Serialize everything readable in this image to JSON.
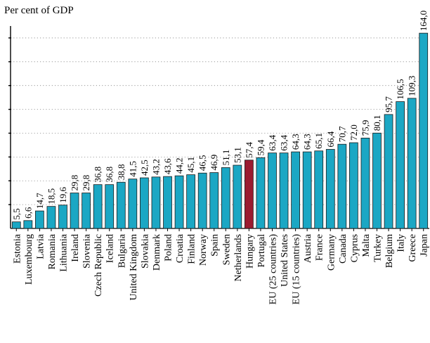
{
  "chart_data": {
    "type": "bar",
    "ylabel": "Per cent of GDP",
    "ylim": [
      0,
      170
    ],
    "y_tick_step": 20,
    "grid": true,
    "highlight_color": "#9b1b30",
    "bar_color": "#1ba7c4",
    "highlight_category": "Hungary",
    "categories": [
      "Estonia",
      "Luxembourg",
      "Latvia",
      "Romania",
      "Lithuania",
      "Ireland",
      "Slovenia",
      "Czech Republic",
      "Iceland",
      "Bulgaria",
      "United Kingdom",
      "Slovakia",
      "Denmark",
      "Poland",
      "Croatia",
      "Finland",
      "Norway",
      "Spain",
      "Sweden",
      "Netherlands",
      "Hungary",
      "Portugal",
      "EU (25 countries)",
      "United States",
      "EU (15 countries)",
      "Austria",
      "France",
      "Germany",
      "Canada",
      "Cyprus",
      "Malta",
      "Turkey",
      "Belgium",
      "Italy",
      "Greece",
      "Japan"
    ],
    "value_labels": [
      "5,5",
      "6,6",
      "14,7",
      "18,5",
      "19,6",
      "29,8",
      "29,8",
      "36,8",
      "36,8",
      "38,8",
      "41,5",
      "42,5",
      "43,2",
      "43,6",
      "44,2",
      "45,1",
      "46,5",
      "46,9",
      "51,1",
      "53,1",
      "57,4",
      "59,4",
      "63,4",
      "63,4",
      "64,3",
      "64,3",
      "65,1",
      "66,4",
      "70,7",
      "72,0",
      "75,9",
      "80,1",
      "95,7",
      "106,5",
      "109,3",
      "164,0"
    ],
    "values": [
      5.5,
      6.6,
      14.7,
      18.5,
      19.6,
      29.8,
      29.8,
      36.8,
      36.8,
      38.8,
      41.5,
      42.5,
      43.2,
      43.6,
      44.2,
      45.1,
      46.5,
      46.9,
      51.1,
      53.1,
      57.4,
      59.4,
      63.4,
      63.4,
      64.3,
      64.3,
      65.1,
      66.4,
      70.7,
      72.0,
      75.9,
      80.1,
      95.7,
      106.5,
      109.3,
      164.0
    ]
  }
}
